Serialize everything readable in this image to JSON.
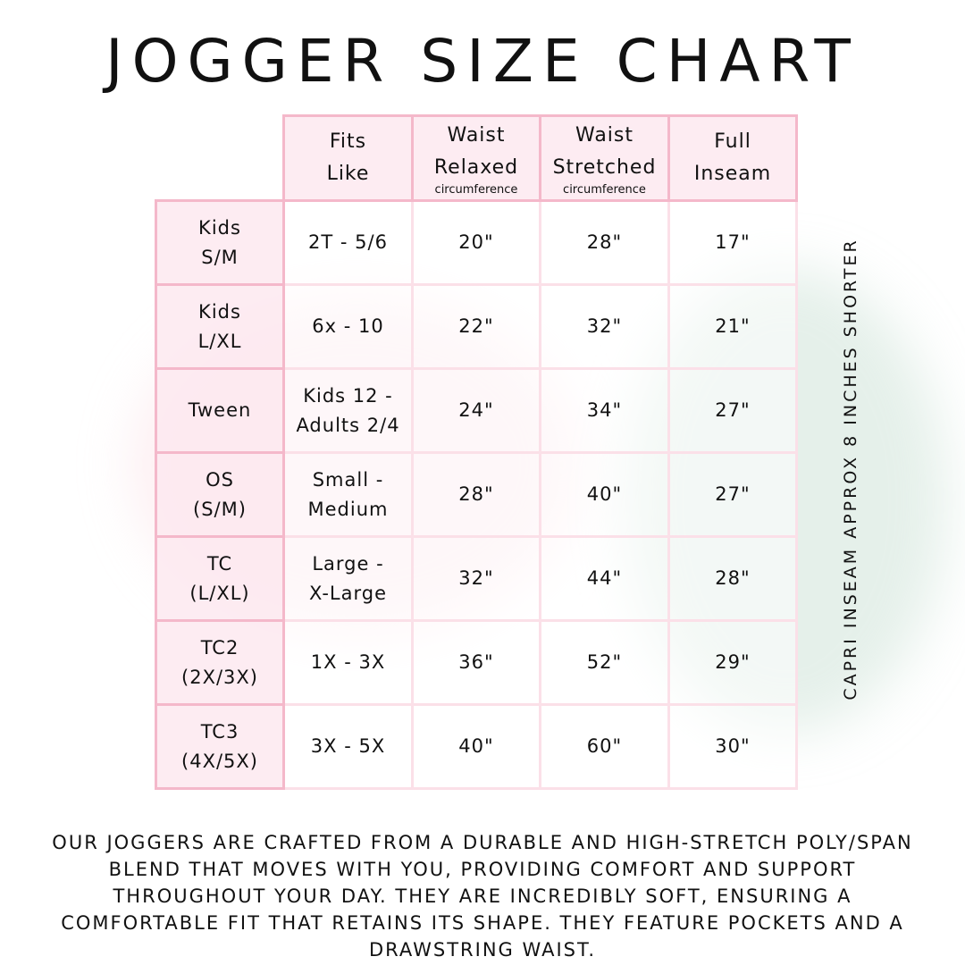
{
  "title": "JOGGER SIZE CHART",
  "columns": [
    {
      "line1": "Fits",
      "line2": "Like",
      "sub": ""
    },
    {
      "line1": "Waist",
      "line2": "Relaxed",
      "sub": "circumference"
    },
    {
      "line1": "Waist",
      "line2": "Stretched",
      "sub": "circumference"
    },
    {
      "line1": "Full",
      "line2": "Inseam",
      "sub": ""
    }
  ],
  "rows": [
    {
      "size1": "Kids",
      "size2": "S/M",
      "fits1": "2T - 5/6",
      "fits2": "",
      "relaxed": "20\"",
      "stretched": "28\"",
      "inseam": "17\""
    },
    {
      "size1": "Kids",
      "size2": "L/XL",
      "fits1": "6x - 10",
      "fits2": "",
      "relaxed": "22\"",
      "stretched": "32\"",
      "inseam": "21\""
    },
    {
      "size1": "Tween",
      "size2": "",
      "fits1": "Kids 12 -",
      "fits2": "Adults 2/4",
      "relaxed": "24\"",
      "stretched": "34\"",
      "inseam": "27\""
    },
    {
      "size1": "OS",
      "size2": "(S/M)",
      "fits1": "Small -",
      "fits2": "Medium",
      "relaxed": "28\"",
      "stretched": "40\"",
      "inseam": "27\""
    },
    {
      "size1": "TC",
      "size2": "(L/XL)",
      "fits1": "Large -",
      "fits2": "X-Large",
      "relaxed": "32\"",
      "stretched": "44\"",
      "inseam": "28\""
    },
    {
      "size1": "TC2",
      "size2": "(2X/3X)",
      "fits1": "1X - 3X",
      "fits2": "",
      "relaxed": "36\"",
      "stretched": "52\"",
      "inseam": "29\""
    },
    {
      "size1": "TC3",
      "size2": "(4X/5X)",
      "fits1": "3X - 5X",
      "fits2": "",
      "relaxed": "40\"",
      "stretched": "60\"",
      "inseam": "30\""
    }
  ],
  "side_note": "CAPRI INSEAM APPROX 8 INCHES SHORTER",
  "description": "Our joggers are crafted from a durable and high-stretch poly/span blend that moves with you, providing comfort and support throughout your day. They are incredibly soft, ensuring a comfortable fit that retains its shape. They feature pockets and a drawstring waist.",
  "colors": {
    "header_fill": "#fde9f0",
    "border": "#f4b8ca",
    "text": "#111111"
  }
}
